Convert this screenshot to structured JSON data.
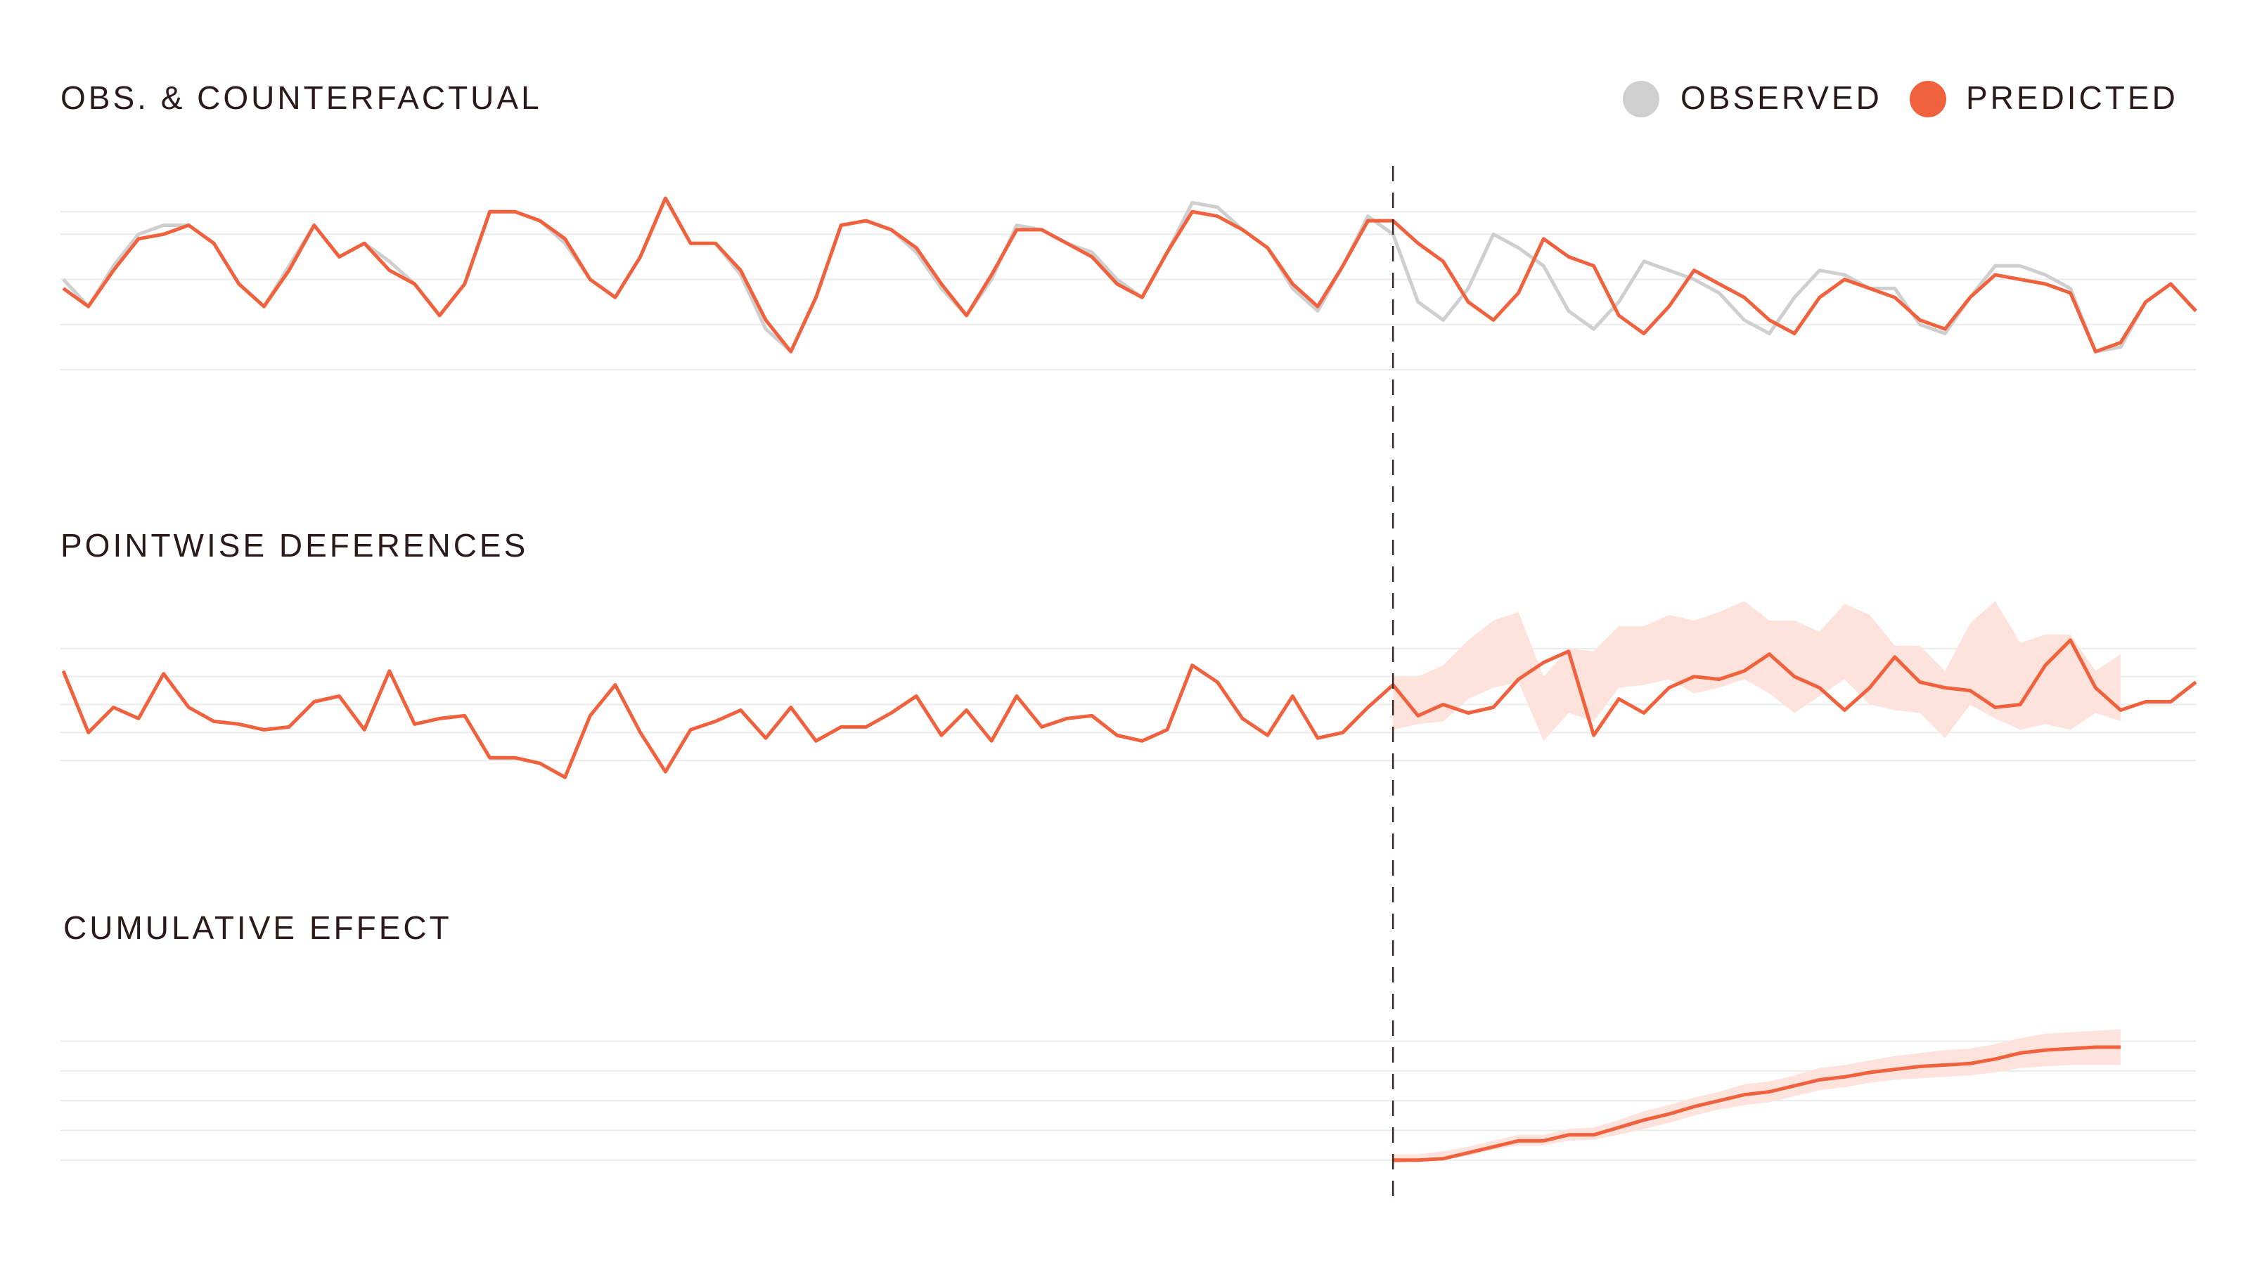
{
  "colors": {
    "observed": "#cfcfcf",
    "predicted": "#f0623e",
    "band": "#fde3dc",
    "text": "#2b1a1a",
    "grid": "#ebebeb"
  },
  "legend": {
    "observed": "OBSERVED",
    "predicted": "PREDICTED"
  },
  "chart_data": [
    {
      "type": "line",
      "title": "OBS. & COUNTERFACTUAL",
      "x": "index 0-85",
      "intervention_index": 53,
      "grid": true,
      "legend": "top-right",
      "ylim": [
        0,
        4.5
      ],
      "yticks": [
        0,
        1,
        2,
        3,
        3.5
      ],
      "series": [
        {
          "name": "OBSERVED",
          "values": [
            2.0,
            1.4,
            2.3,
            3.0,
            3.2,
            3.2,
            2.8,
            1.9,
            1.4,
            2.3,
            3.2,
            2.5,
            2.8,
            2.4,
            1.9,
            1.2,
            1.9,
            3.5,
            3.5,
            3.3,
            2.8,
            2.0,
            1.6,
            2.5,
            3.8,
            2.8,
            2.8,
            2.1,
            0.9,
            0.4,
            1.6,
            3.2,
            3.3,
            3.1,
            2.6,
            1.8,
            1.2,
            2.0,
            3.2,
            3.1,
            2.8,
            2.6,
            2.0,
            1.6,
            2.6,
            3.7,
            3.6,
            3.1,
            2.7,
            1.8,
            1.3,
            2.3,
            3.4,
            3.0,
            1.5,
            1.1,
            1.8,
            3.0,
            2.7,
            2.3,
            1.3,
            0.9,
            1.5,
            2.4,
            2.2,
            2.0,
            1.7,
            1.1,
            0.8,
            1.6,
            2.2,
            2.1,
            1.8,
            1.8,
            1.0,
            0.8,
            1.6,
            2.3,
            2.3,
            2.1,
            1.8,
            0.4,
            0.5,
            1.5,
            1.9,
            1.3
          ]
        },
        {
          "name": "PREDICTED",
          "values": [
            1.8,
            1.4,
            2.2,
            2.9,
            3.0,
            3.2,
            2.8,
            1.9,
            1.4,
            2.2,
            3.2,
            2.5,
            2.8,
            2.2,
            1.9,
            1.2,
            1.9,
            3.5,
            3.5,
            3.3,
            2.9,
            2.0,
            1.6,
            2.5,
            3.8,
            2.8,
            2.8,
            2.2,
            1.1,
            0.4,
            1.6,
            3.2,
            3.3,
            3.1,
            2.7,
            1.9,
            1.2,
            2.1,
            3.1,
            3.1,
            2.8,
            2.5,
            1.9,
            1.6,
            2.6,
            3.5,
            3.4,
            3.1,
            2.7,
            1.9,
            1.4,
            2.3,
            3.3,
            3.3,
            2.8,
            2.4,
            1.5,
            1.1,
            1.7,
            2.9,
            2.5,
            2.3,
            1.2,
            0.8,
            1.4,
            2.2,
            1.9,
            1.6,
            1.1,
            0.8,
            1.6,
            2.0,
            1.8,
            1.6,
            1.1,
            0.9,
            1.6,
            2.1,
            2.0,
            1.9,
            1.7,
            0.4,
            0.6,
            1.5,
            1.9,
            1.3
          ]
        }
      ]
    },
    {
      "type": "area",
      "title": "POINTWISE DEFERENCES",
      "x": "index 0-85",
      "intervention_index": 53,
      "grid": true,
      "ylim": [
        -3.2,
        3.2
      ],
      "yticks": [
        -2,
        -1,
        0,
        1,
        2
      ],
      "series": [
        {
          "values": [
            1.2,
            -1.0,
            -0.1,
            -0.5,
            1.1,
            -0.1,
            -0.6,
            -0.7,
            -0.9,
            -0.8,
            0.1,
            0.3,
            -0.9,
            1.2,
            -0.7,
            -0.5,
            -0.4,
            -1.9,
            -1.9,
            -2.1,
            -2.6,
            -0.4,
            0.7,
            -1.0,
            -2.4,
            -0.9,
            -0.6,
            -0.2,
            -1.2,
            -0.1,
            -1.3,
            -0.8,
            -0.8,
            -0.3,
            0.3,
            -1.1,
            -0.2,
            -1.3,
            0.3,
            -0.8,
            -0.5,
            -0.4,
            -1.1,
            -1.3,
            -0.9,
            1.4,
            0.8,
            -0.5,
            -1.1,
            0.3,
            -1.2,
            -1.0,
            -0.1,
            0.7,
            -0.4,
            0.0,
            -0.3,
            -0.1,
            0.9,
            1.5,
            1.9,
            -1.1,
            0.2,
            -0.3,
            0.6,
            1.0,
            0.9,
            1.2,
            1.8,
            1.0,
            0.6,
            -0.2,
            0.6,
            1.7,
            0.8,
            0.6,
            0.5,
            -0.1,
            0.0,
            1.4,
            2.3,
            0.6,
            -0.2,
            0.1,
            0.1,
            0.8
          ]
        }
      ],
      "band": {
        "from_index": 53,
        "lower": [
          -0.9,
          -0.7,
          -0.6,
          0.2,
          0.6,
          0.8,
          -1.3,
          -0.3,
          -0.6,
          0.6,
          0.7,
          0.9,
          0.4,
          0.6,
          0.9,
          0.4,
          -0.3,
          0.3,
          0.9,
          0.0,
          -0.2,
          -0.3,
          -1.2,
          0.0,
          -0.5,
          -0.9,
          -0.7,
          -0.9,
          -0.3,
          -0.6
        ],
        "upper": [
          1.0,
          1.0,
          1.4,
          2.3,
          3.0,
          3.3,
          1.0,
          2.0,
          1.9,
          2.8,
          2.8,
          3.2,
          3.0,
          3.3,
          3.7,
          3.0,
          3.0,
          2.6,
          3.6,
          3.2,
          2.1,
          2.1,
          1.2,
          2.9,
          3.7,
          2.2,
          2.5,
          2.5,
          1.2,
          1.8
        ]
      }
    },
    {
      "type": "area",
      "title": "CUMULATIVE EFFECT",
      "x": "index 0-85",
      "intervention_index": 53,
      "grid": true,
      "ylim": [
        -0.5,
        5.5
      ],
      "yticks": [
        0,
        1,
        2,
        3,
        4
      ],
      "series": [
        {
          "from_index": 53,
          "values": [
            0.0,
            0.0,
            0.05,
            0.25,
            0.45,
            0.65,
            0.65,
            0.85,
            0.85,
            1.1,
            1.35,
            1.55,
            1.8,
            2.0,
            2.2,
            2.3,
            2.5,
            2.7,
            2.8,
            2.95,
            3.05,
            3.15,
            3.2,
            3.25,
            3.4,
            3.6,
            3.7,
            3.75,
            3.8,
            3.8
          ]
        }
      ],
      "band": {
        "from_index": 53,
        "lower": [
          -0.1,
          -0.05,
          0.0,
          0.15,
          0.35,
          0.5,
          0.5,
          0.65,
          0.7,
          0.85,
          1.05,
          1.25,
          1.5,
          1.7,
          1.85,
          1.95,
          2.15,
          2.35,
          2.45,
          2.6,
          2.7,
          2.75,
          2.8,
          2.85,
          2.95,
          3.1,
          3.15,
          3.2,
          3.2,
          3.2
        ],
        "upper": [
          0.2,
          0.2,
          0.3,
          0.45,
          0.65,
          0.85,
          0.85,
          1.05,
          1.1,
          1.35,
          1.65,
          1.85,
          2.1,
          2.3,
          2.55,
          2.65,
          2.85,
          3.1,
          3.2,
          3.35,
          3.5,
          3.6,
          3.7,
          3.75,
          3.9,
          4.1,
          4.25,
          4.3,
          4.35,
          4.4
        ]
      }
    }
  ]
}
